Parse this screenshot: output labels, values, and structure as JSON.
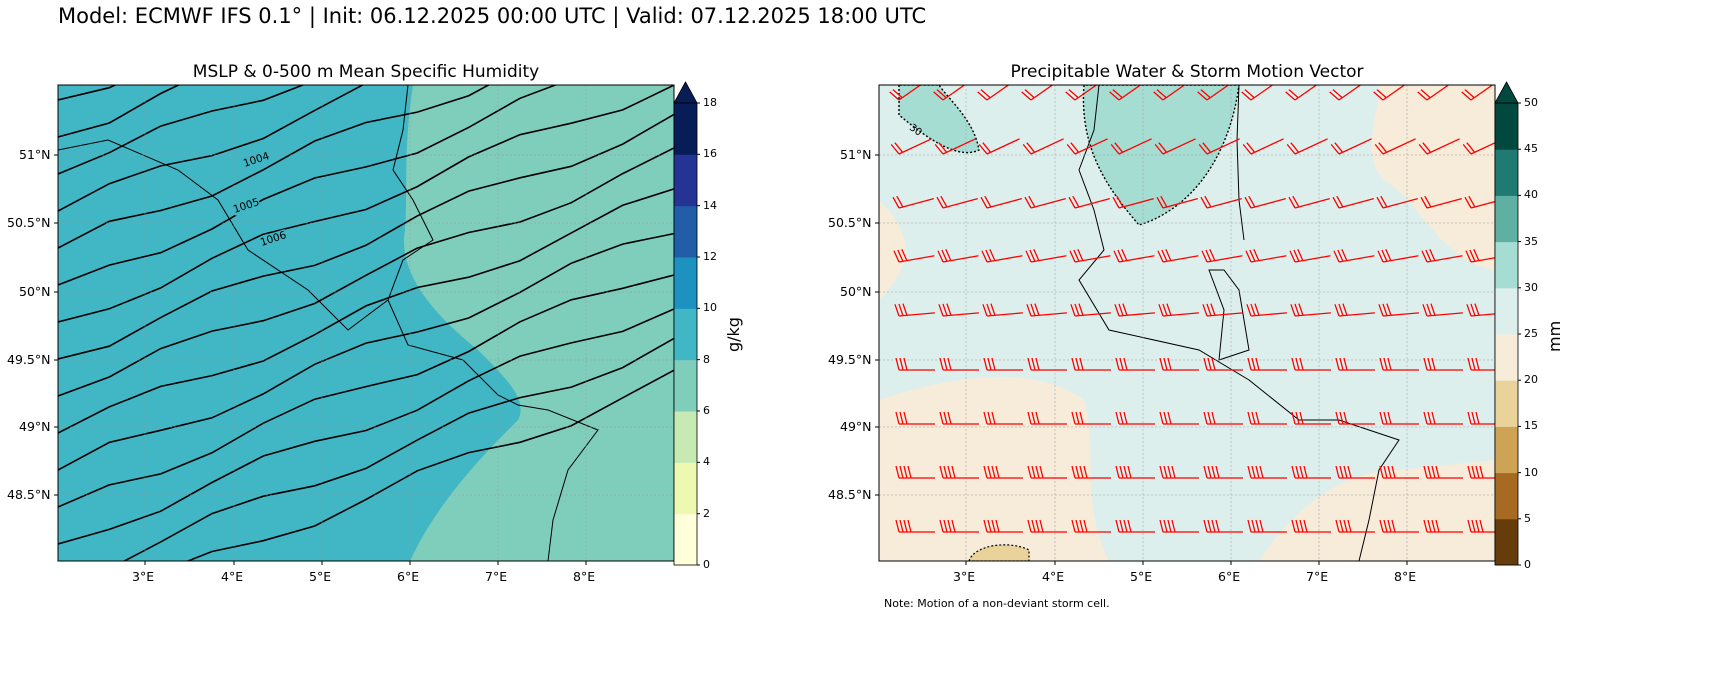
{
  "suptitle": "Model: ECMWF IFS 0.1° | Init: 06.12.2025 00:00 UTC | Valid: 07.12.2025 18:00 UTC",
  "left_panel": {
    "title": "MSLP & 0-500 m Mean Specific Humidity",
    "colorbar_label": "g/kg",
    "colorbar_ticks": [
      "0",
      "2",
      "4",
      "6",
      "8",
      "10",
      "12",
      "14",
      "16",
      "18"
    ],
    "colorbar_colors": [
      "#ffffd9",
      "#edf8b1",
      "#c7e9b4",
      "#7fcdbb",
      "#41b6c4",
      "#1d91c0",
      "#225ea8",
      "#253494",
      "#081d58"
    ],
    "extend_color": "#081d58",
    "isobar_labels": [
      "1004",
      "1005",
      "1006"
    ]
  },
  "right_panel": {
    "title": "Precipitable Water & Storm Motion Vector",
    "colorbar_label": "mm",
    "colorbar_ticks": [
      "0",
      "5",
      "10",
      "15",
      "20",
      "25",
      "30",
      "35",
      "40",
      "45",
      "50"
    ],
    "colorbar_colors": [
      "#653c0a",
      "#a66a22",
      "#cfa355",
      "#e9d39a",
      "#f6ecd9",
      "#ddefec",
      "#a6ddd2",
      "#5fb0a3",
      "#1f7b72",
      "#01483e"
    ],
    "extend_color": "#01483e",
    "contour_label": "30",
    "barb_color": "#ff0000",
    "note": "Note: Motion of a non-deviant storm cell."
  },
  "axes": {
    "lon_ticks": [
      "3°E",
      "4°E",
      "5°E",
      "6°E",
      "7°E",
      "8°E"
    ],
    "lat_ticks": [
      "51°N",
      "50.5°N",
      "50°N",
      "49.5°N",
      "49°N",
      "48.5°N"
    ]
  }
}
